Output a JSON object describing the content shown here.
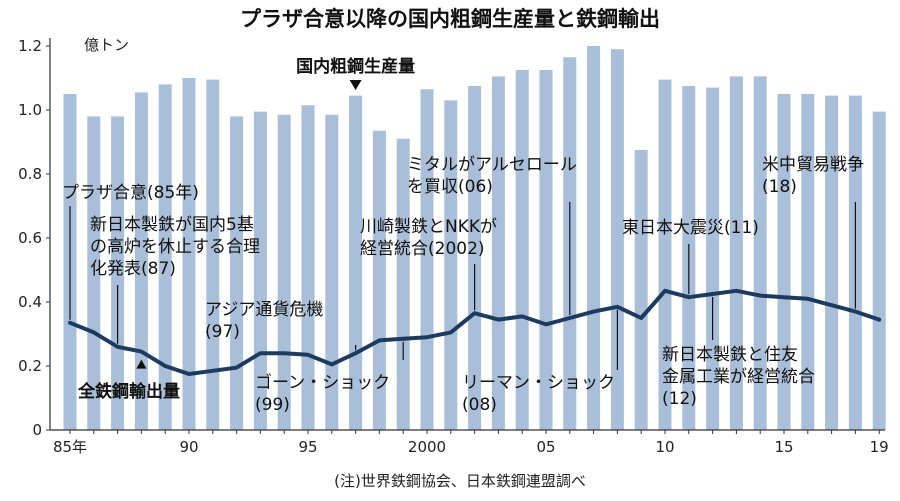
{
  "chart_data": {
    "type": "bar+line",
    "title": "プラザ合意以降の国内粗鋼生産量と鉄鋼輸出",
    "ylabel": "億トン",
    "ylim": [
      0,
      1.2
    ],
    "yticks": [
      "0",
      "0.2",
      "0.4",
      "0.6",
      "0.8",
      "1.0",
      "1.2"
    ],
    "x": [
      1985,
      1986,
      1987,
      1988,
      1989,
      1990,
      1991,
      1992,
      1993,
      1994,
      1995,
      1996,
      1997,
      1998,
      1999,
      2000,
      2001,
      2002,
      2003,
      2004,
      2005,
      2006,
      2007,
      2008,
      2009,
      2010,
      2011,
      2012,
      2013,
      2014,
      2015,
      2016,
      2017,
      2018,
      2019
    ],
    "xtick_labels": [
      {
        "year": 1985,
        "label": "85年"
      },
      {
        "year": 1990,
        "label": "90"
      },
      {
        "year": 1995,
        "label": "95"
      },
      {
        "year": 2000,
        "label": "2000"
      },
      {
        "year": 2005,
        "label": "05"
      },
      {
        "year": 2010,
        "label": "10"
      },
      {
        "year": 2015,
        "label": "15"
      },
      {
        "year": 2019,
        "label": "19"
      }
    ],
    "series": [
      {
        "name": "国内粗鋼生産量",
        "kind": "bar",
        "color": "#a9bfd9",
        "values": [
          1.05,
          0.98,
          0.98,
          1.055,
          1.08,
          1.1,
          1.095,
          0.98,
          0.995,
          0.985,
          1.015,
          0.985,
          1.045,
          0.935,
          0.91,
          1.065,
          1.03,
          1.075,
          1.105,
          1.125,
          1.125,
          1.165,
          1.2,
          1.19,
          0.875,
          1.095,
          1.075,
          1.07,
          1.105,
          1.105,
          1.05,
          1.05,
          1.045,
          1.045,
          0.995
        ]
      },
      {
        "name": "全鉄鋼輸出量",
        "kind": "line",
        "color": "#1d3a5f",
        "values": [
          0.335,
          0.305,
          0.26,
          0.245,
          0.2,
          0.175,
          0.185,
          0.195,
          0.24,
          0.24,
          0.235,
          0.205,
          0.24,
          0.28,
          0.285,
          0.29,
          0.305,
          0.365,
          0.345,
          0.355,
          0.33,
          0.35,
          0.37,
          0.385,
          0.35,
          0.435,
          0.415,
          0.425,
          0.435,
          0.42,
          0.415,
          0.41,
          0.39,
          0.37,
          0.345
        ]
      }
    ],
    "series_labels": [
      {
        "series": "国内粗鋼生産量",
        "text": "国内粗鋼生産量",
        "year": 1997
      },
      {
        "series": "全鉄鋼輸出量",
        "text": "全鉄鋼輸出量",
        "year": 1988
      }
    ],
    "annotations": [
      {
        "year": 1985,
        "lines": [
          "プラザ合意(85年)"
        ]
      },
      {
        "year": 1987,
        "lines": [
          "新日本製鉄が国内5基",
          "の高炉を休止する合理",
          "化発表(87)"
        ]
      },
      {
        "year": 1997,
        "lines": [
          "アジア通貨危機",
          "(97)"
        ]
      },
      {
        "year": 1999,
        "lines": [
          "ゴーン・ショック",
          "(99)"
        ]
      },
      {
        "year": 2002,
        "lines": [
          "川崎製鉄とNKKが",
          "経営統合(2002)"
        ]
      },
      {
        "year": 2006,
        "lines": [
          "ミタルがアルセロール",
          "を買収(06)"
        ]
      },
      {
        "year": 2008,
        "lines": [
          "リーマン・ショック",
          "(08)"
        ]
      },
      {
        "year": 2011,
        "lines": [
          "東日本大震災(11)"
        ]
      },
      {
        "year": 2012,
        "lines": [
          "新日本製鉄と住友",
          "金属工業が経営統合",
          "(12)"
        ]
      },
      {
        "year": 2018,
        "lines": [
          "米中貿易戦争",
          "(18)"
        ]
      }
    ],
    "source_note": "(注)世界鉄鋼協会、日本鉄鋼連盟調べ"
  }
}
